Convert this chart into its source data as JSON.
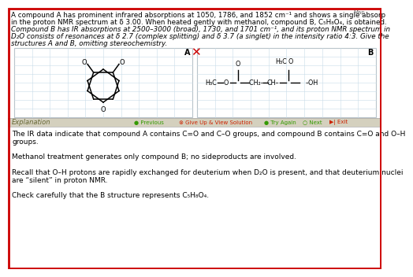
{
  "bg_color": "#ffffff",
  "border_color": "#cc0000",
  "line1": "A compound A has prominent infrared absorptions at 1050, 1786, and 1852 cm⁻¹ and shows a single absorp",
  "line2": "in the proton NMR spectrum at δ 3.00. When heated gently with methanol, compound B, C₅H₈O₄, is obtained.",
  "line3_italic": "Compound B has IR absorptions at 2500–3000 (broad), 1730, and 1701 cm⁻¹, and its proton NMR spectrum in",
  "line4_italic": "D₂O consists of resonances at δ 2.7 (complex splitting) and δ 3.7 (a singlet) in the intensity ratio 4:3. Give the",
  "line5_italic": "structures A and B, omitting stereochemistry.",
  "panel_A_label": "A",
  "panel_B_label": "B",
  "panel_grid_color": "#c8dce8",
  "toolbar_bg": "#d4d0be",
  "explanation_label": "Explanation",
  "exp_line1": "The IR data indicate that compound A contains C=O and C–O groups, and compound B contains C=O and O–H",
  "exp_line2": "groups.",
  "exp_line3": "Methanol treatment generates only compound B; no sideproducts are involved.",
  "exp_line4": "Recall that O–H protons are rapidly exchanged for deuterium when D₂O is present, and that deuterium nuclei",
  "exp_line5": "are “silent” in proton NMR.",
  "exp_line6": "Check carefully that the B structure represents C₅H₈O₄.",
  "map_text": "Map",
  "red_x": "✕",
  "red_x_color": "#cc0000",
  "text_fs": 6.3,
  "exp_fs": 6.5,
  "toolbar_label_color": "#666633",
  "btn_prev_text": "● Previous",
  "btn_give_text": "⊗ Give Up & View Solution",
  "btn_try_text": "● Try Again",
  "btn_next_text": "○ Next",
  "btn_exit_text": "▶| Exit",
  "btn_green": "#339900",
  "btn_red": "#cc2200"
}
